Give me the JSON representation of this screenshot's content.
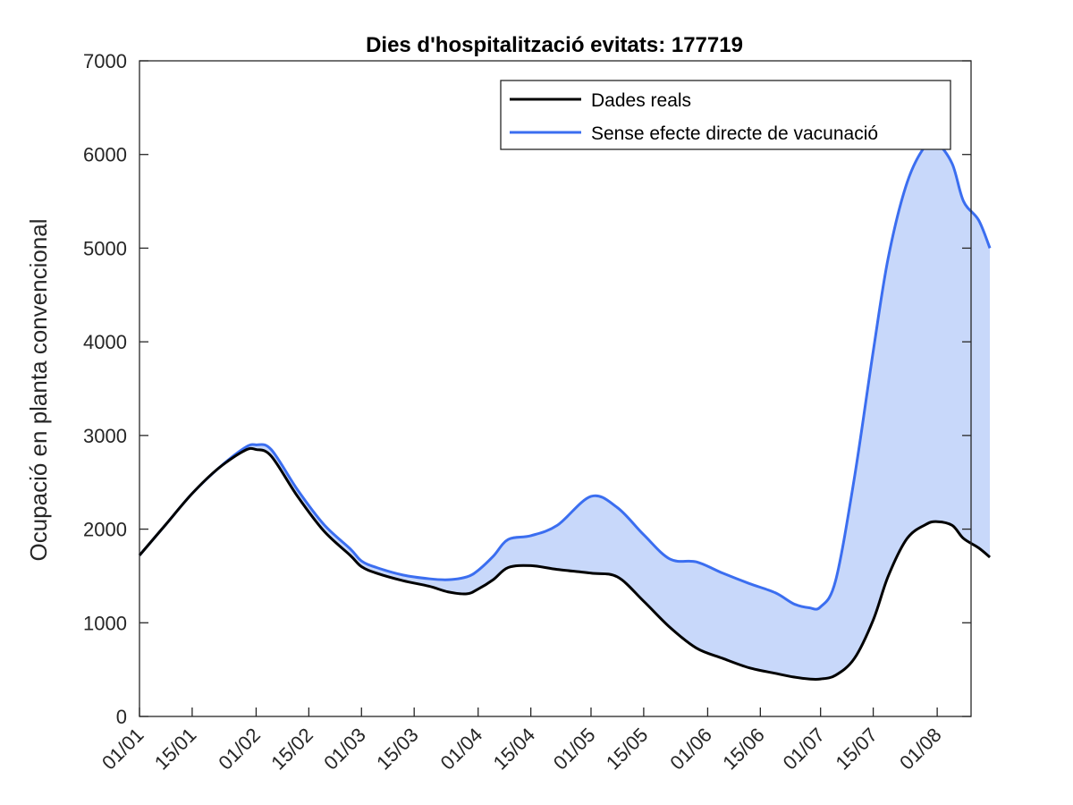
{
  "chart_data": {
    "type": "line",
    "title": "Dies d'hospitalització evitats: 177719",
    "xlabel": "",
    "ylabel": "Ocupació en planta convencional",
    "ylim": [
      0,
      7000
    ],
    "xlim": [
      "01/01",
      "15/08"
    ],
    "y_ticks": [
      0,
      1000,
      2000,
      3000,
      4000,
      5000,
      6000,
      7000
    ],
    "x_ticks": [
      {
        "day": 0,
        "label": "01/01"
      },
      {
        "day": 14,
        "label": "15/01"
      },
      {
        "day": 31,
        "label": "01/02"
      },
      {
        "day": 45,
        "label": "15/02"
      },
      {
        "day": 59,
        "label": "01/03"
      },
      {
        "day": 73,
        "label": "15/03"
      },
      {
        "day": 90,
        "label": "01/04"
      },
      {
        "day": 104,
        "label": "15/04"
      },
      {
        "day": 120,
        "label": "01/05"
      },
      {
        "day": 134,
        "label": "15/05"
      },
      {
        "day": 151,
        "label": "01/06"
      },
      {
        "day": 165,
        "label": "15/06"
      },
      {
        "day": 181,
        "label": "01/07"
      },
      {
        "day": 195,
        "label": "15/07"
      },
      {
        "day": 212,
        "label": "01/08"
      }
    ],
    "x_day_max": 221,
    "legend": {
      "placement": "top-right"
    },
    "fill": {
      "between": [
        "Sense efecte directe de vacunació",
        "Dades reals"
      ],
      "color": "#c8d8fa"
    },
    "series": [
      {
        "name": "Dades reals",
        "color": "#000000",
        "x": [
          "01/01",
          "08/01",
          "15/01",
          "22/01",
          "29/01",
          "01/02",
          "05/02",
          "12/02",
          "19/02",
          "26/02",
          "01/03",
          "05/03",
          "12/03",
          "19/03",
          "24/03",
          "29/03",
          "01/04",
          "05/04",
          "09/04",
          "15/04",
          "22/04",
          "01/05",
          "08/05",
          "15/05",
          "22/05",
          "29/05",
          "05/06",
          "12/06",
          "19/06",
          "24/06",
          "28/06",
          "01/07",
          "05/07",
          "10/07",
          "15/07",
          "19/07",
          "24/07",
          "29/07",
          "01/08",
          "05/08",
          "08/08",
          "12/08",
          "15/08"
        ],
        "values": [
          1720,
          2050,
          2380,
          2650,
          2840,
          2850,
          2780,
          2350,
          1980,
          1720,
          1600,
          1530,
          1450,
          1390,
          1330,
          1310,
          1360,
          1460,
          1590,
          1610,
          1570,
          1530,
          1490,
          1230,
          950,
          730,
          620,
          520,
          460,
          420,
          400,
          400,
          440,
          620,
          1030,
          1500,
          1900,
          2050,
          2080,
          2040,
          1900,
          1800,
          1700
        ]
      },
      {
        "name": "Sense efecte directe de vacunació",
        "color": "#3b6ef0",
        "x": [
          "01/01",
          "08/01",
          "15/01",
          "22/01",
          "29/01",
          "01/02",
          "05/02",
          "12/02",
          "19/02",
          "26/02",
          "01/03",
          "05/03",
          "12/03",
          "19/03",
          "24/03",
          "29/03",
          "01/04",
          "05/04",
          "09/04",
          "15/04",
          "22/04",
          "01/05",
          "08/05",
          "15/05",
          "22/05",
          "29/05",
          "05/06",
          "12/06",
          "19/06",
          "24/06",
          "28/06",
          "01/07",
          "05/07",
          "10/07",
          "15/07",
          "19/07",
          "24/07",
          "29/07",
          "01/08",
          "05/08",
          "08/08",
          "12/08",
          "15/08"
        ],
        "values": [
          1720,
          2050,
          2380,
          2650,
          2870,
          2900,
          2850,
          2420,
          2050,
          1790,
          1660,
          1590,
          1510,
          1470,
          1460,
          1490,
          1560,
          1710,
          1890,
          1930,
          2040,
          2350,
          2230,
          1940,
          1680,
          1650,
          1530,
          1420,
          1320,
          1200,
          1160,
          1170,
          1450,
          2550,
          3900,
          4900,
          5700,
          6100,
          6120,
          5900,
          5500,
          5300,
          5000
        ]
      }
    ]
  }
}
